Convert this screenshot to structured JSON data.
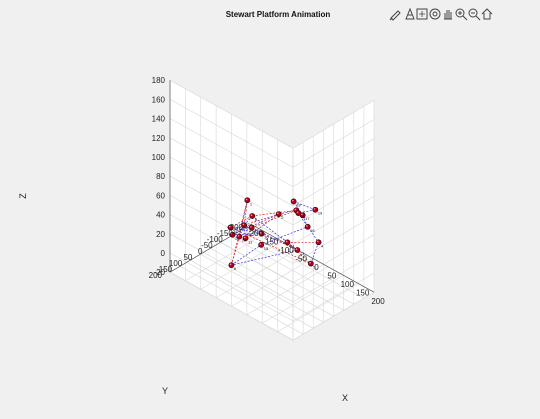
{
  "figure": {
    "background": "#f0f0f0",
    "toolbar": {
      "icons": [
        "brush-icon",
        "data-tips-icon",
        "export-icon",
        "rotate-3d-icon",
        "pan-icon",
        "zoom-in-icon",
        "zoom-out-icon",
        "home-icon"
      ]
    }
  },
  "chart_data": {
    "type": "scatter",
    "title": "Stewart Platform Animation",
    "xlabel": "X",
    "ylabel": "Y",
    "zlabel": "Z",
    "xlim": [
      -200,
      200
    ],
    "ylim": [
      -200,
      200
    ],
    "zlim": [
      -20,
      180
    ],
    "x_ticks": [
      "-200",
      "-150",
      "-100",
      "-50",
      "0",
      "50",
      "100",
      "150",
      "200"
    ],
    "y_ticks": [
      "-200",
      "-150",
      "-100",
      "-50",
      "0",
      "50",
      "100",
      "150",
      "200"
    ],
    "z_ticks": [
      "-20",
      "0",
      "20",
      "40",
      "60",
      "80",
      "100",
      "120",
      "140",
      "160",
      "180"
    ],
    "grid": true,
    "view": "3d",
    "colors": {
      "marker": "#b0001e",
      "blue_link": "#3030e0",
      "red_link": "#e02020",
      "grid": "#d8d8d8",
      "axes": "#ffffff"
    },
    "points": [
      [
        -127,
        -71,
        34
      ],
      [
        -73,
        -144,
        20
      ],
      [
        -27,
        -161,
        30
      ],
      [
        104,
        -72,
        31
      ],
      [
        127,
        1,
        22
      ],
      [
        -24,
        164,
        14
      ],
      [
        -7,
        127,
        54
      ],
      [
        5,
        105,
        63
      ],
      [
        -20,
        70,
        42
      ],
      [
        -30,
        6,
        26
      ],
      [
        -63,
        35,
        19
      ],
      [
        -119,
        24,
        19
      ],
      [
        93,
        16,
        32
      ],
      [
        60,
        15,
        34
      ],
      [
        42,
        117,
        41
      ],
      [
        137,
        32,
        66
      ],
      [
        134,
        52,
        80
      ],
      [
        96,
        39,
        86
      ],
      [
        156,
        23,
        86
      ],
      [
        137,
        78,
        86
      ],
      [
        -125,
        5,
        8
      ],
      [
        -89,
        26,
        15
      ]
    ],
    "point_labels": [
      "1",
      "2",
      "3",
      "4",
      "5",
      "6",
      "7",
      "8",
      "9",
      "10",
      "11",
      "12",
      "13",
      "14",
      "15",
      "16",
      "17",
      "18",
      "19",
      "20",
      "21",
      "22"
    ],
    "blue_links": [
      [
        2,
        3
      ],
      [
        3,
        4
      ],
      [
        4,
        5
      ],
      [
        21,
        2
      ],
      [
        22,
        1
      ],
      [
        10,
        21
      ],
      [
        7,
        8
      ],
      [
        8,
        14
      ],
      [
        14,
        13
      ],
      [
        13,
        9
      ],
      [
        9,
        11
      ],
      [
        11,
        7
      ],
      [
        6,
        15
      ],
      [
        15,
        16
      ],
      [
        16,
        17
      ],
      [
        17,
        18
      ],
      [
        18,
        19
      ],
      [
        19,
        20
      ],
      [
        17,
        20
      ],
      [
        13,
        6
      ],
      [
        10,
        12
      ]
    ],
    "red_links": [
      [
        6,
        1
      ],
      [
        6,
        22
      ],
      [
        7,
        1
      ],
      [
        11,
        22
      ],
      [
        11,
        2
      ],
      [
        8,
        12
      ],
      [
        12,
        5
      ],
      [
        9,
        12
      ],
      [
        13,
        10
      ],
      [
        14,
        4
      ],
      [
        14,
        5
      ],
      [
        9,
        3
      ],
      [
        7,
        2
      ],
      [
        8,
        3
      ]
    ]
  }
}
